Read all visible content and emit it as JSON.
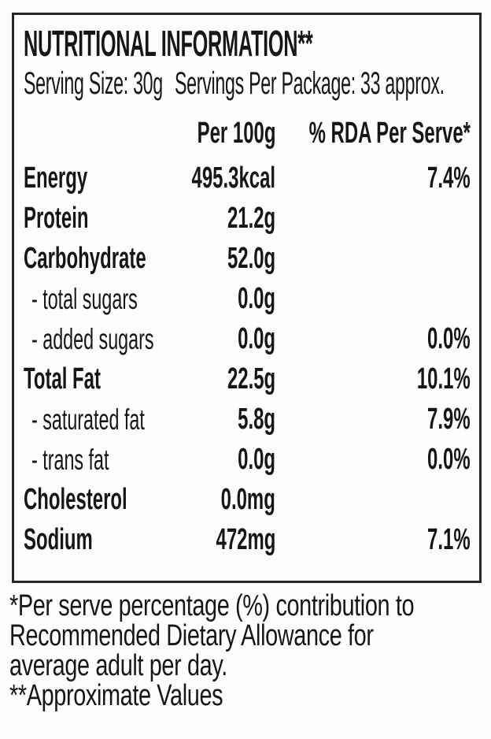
{
  "panel": {
    "title": "NUTRITIONAL INFORMATION**",
    "serving_size": "Serving Size: 30g",
    "servings_per_package": "Servings Per Package: 33 approx.",
    "columns": {
      "amount": "Per 100g",
      "rda": "% RDA Per Serve*"
    },
    "rows": [
      {
        "label": "Energy",
        "per_100g": "495.3kcal",
        "rda": "7.4%"
      },
      {
        "label": "Protein",
        "per_100g": "21.2g",
        "rda": ""
      },
      {
        "label": "Carbohydrate",
        "per_100g": "52.0g",
        "rda": ""
      },
      {
        "label": "- total sugars",
        "per_100g": "0.0g",
        "rda": ""
      },
      {
        "label": "- added sugars",
        "per_100g": "0.0g",
        "rda": "0.0%"
      },
      {
        "label": "Total Fat",
        "per_100g": "22.5g",
        "rda": "10.1%"
      },
      {
        "label": "- saturated fat",
        "per_100g": "5.8g",
        "rda": "7.9%"
      },
      {
        "label": "- trans fat",
        "per_100g": "0.0g",
        "rda": "0.0%"
      },
      {
        "label": "Cholesterol",
        "per_100g": "0.0mg",
        "rda": ""
      },
      {
        "label": "Sodium",
        "per_100g": "472mg",
        "rda": "7.1%"
      }
    ]
  },
  "footnotes": {
    "lines": [
      "*Per serve percentage (%) contribution to",
      "Recommended Dietary Allowance for",
      "average adult per day.",
      "**Approximate Values"
    ]
  },
  "colors": {
    "text": "#161616",
    "border": "#262626",
    "background": "#fdfdfd"
  }
}
